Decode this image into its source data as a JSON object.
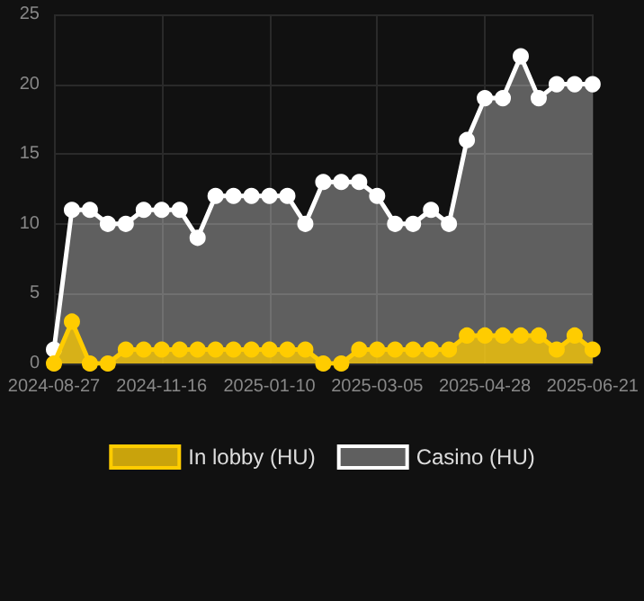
{
  "chart_data": {
    "type": "area",
    "categories": [
      "2024-08-27",
      null,
      null,
      null,
      null,
      null,
      "2024-11-16",
      null,
      null,
      null,
      null,
      null,
      "2025-01-10",
      null,
      null,
      null,
      null,
      null,
      "2025-03-05",
      null,
      null,
      null,
      null,
      null,
      "2025-04-28",
      null,
      null,
      null,
      null,
      null,
      "2025-06-21"
    ],
    "series": [
      {
        "name": "In lobby (HU)",
        "color": "#ffcc00",
        "values": [
          0,
          3,
          0,
          0,
          1,
          1,
          1,
          1,
          1,
          1,
          1,
          1,
          1,
          1,
          1,
          0,
          0,
          1,
          1,
          1,
          1,
          1,
          1,
          2,
          2,
          2,
          2,
          2,
          1,
          2,
          1
        ]
      },
      {
        "name": "Casino (HU)",
        "color": "#ffffff",
        "values": [
          1,
          11,
          11,
          10,
          10,
          11,
          11,
          11,
          9,
          12,
          12,
          12,
          12,
          12,
          10,
          13,
          13,
          13,
          12,
          10,
          10,
          11,
          10,
          16,
          19,
          19,
          22,
          19,
          20,
          20,
          20
        ]
      }
    ],
    "ylim": [
      0,
      25
    ],
    "yticks": [
      0,
      5,
      10,
      15,
      20,
      25
    ],
    "grid": true,
    "legend": "bottom",
    "marker": "circle",
    "line_style": "solid"
  }
}
